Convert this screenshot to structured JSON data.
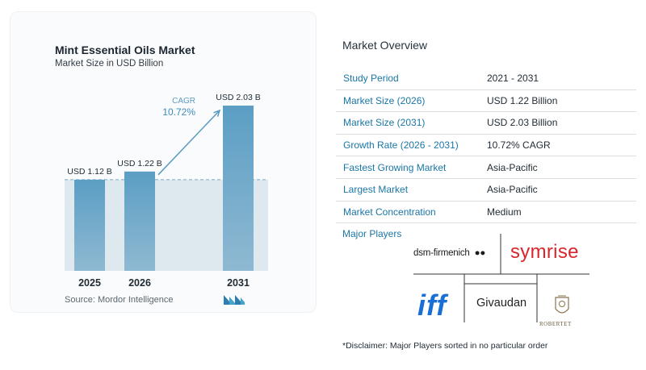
{
  "chart_data": {
    "type": "bar",
    "title": "Mint Essential Oils Market",
    "subtitle": "Market Size in USD Billion",
    "categories": [
      "2025",
      "2026",
      "2031"
    ],
    "values": [
      1.12,
      1.22,
      2.03
    ],
    "data_labels": [
      "USD 1.12 B",
      "USD 1.22 B",
      "USD 2.03 B"
    ],
    "annotation": {
      "label": "CAGR",
      "value": "10.72%"
    },
    "ylim": [
      0,
      2.03
    ],
    "grid": false,
    "colors": {
      "bar_top": "#5b9ec4",
      "bar_bottom": "#8fb9d2",
      "area": "#dde8ef",
      "arrow": "#5d9bc2"
    }
  },
  "source": {
    "text": "Source:  Mordor Intelligence"
  },
  "overview": {
    "title": "Market Overview",
    "rows": [
      {
        "label": "Study Period",
        "value": "2021 - 2031"
      },
      {
        "label": "Market Size (2026)",
        "value": "USD 1.22 Billion"
      },
      {
        "label": "Market Size (2031)",
        "value": "USD 2.03 Billion"
      },
      {
        "label": "Growth Rate (2026 - 2031)",
        "value": "10.72% CAGR"
      },
      {
        "label": "Fastest Growing Market",
        "value": "Asia-Pacific"
      },
      {
        "label": "Largest Market",
        "value": "Asia-Pacific"
      },
      {
        "label": "Market Concentration",
        "value": "Medium"
      }
    ]
  },
  "players": {
    "title": "Major Players",
    "logos": {
      "dsm": "dsm-firmenich",
      "symrise": "symrise",
      "iff": "iff",
      "givaudan": "Givaudan",
      "robertet": "ROBERTET"
    }
  },
  "disclaimer": "*Disclaimer: Major Players sorted in no particular order"
}
